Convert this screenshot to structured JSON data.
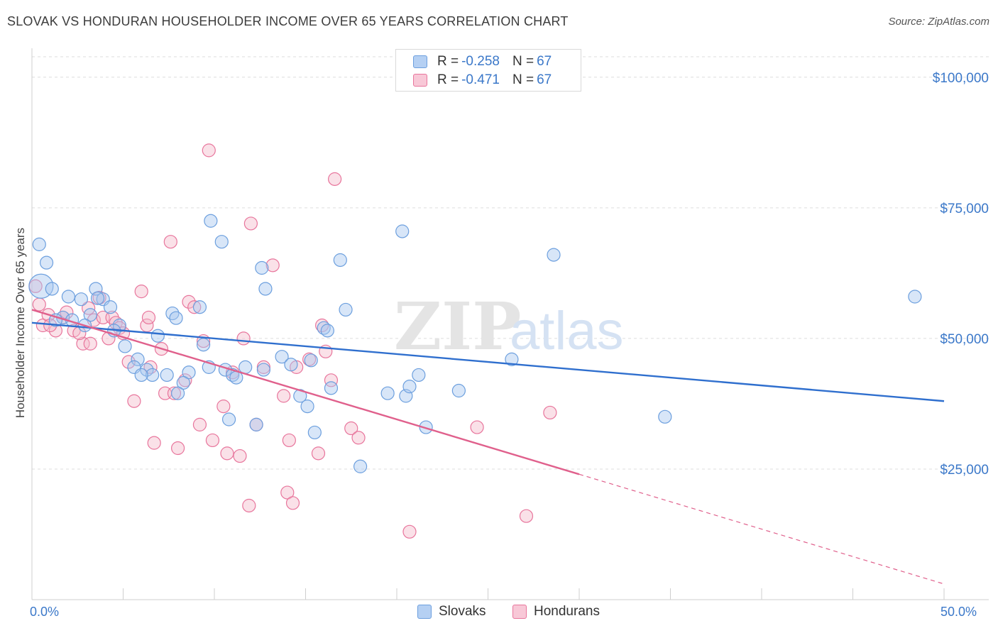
{
  "title": "SLOVAK VS HONDURAN HOUSEHOLDER INCOME OVER 65 YEARS CORRELATION CHART",
  "source": "Source: ZipAtlas.com",
  "watermark": {
    "zip": "ZIP",
    "atlas": "atlas"
  },
  "colors": {
    "blue": "#6c9fde",
    "blue_fill": "#a9c8f0",
    "pink": "#e8759c",
    "pink_fill": "#f5bccd",
    "blue_line": "#2f6fce",
    "pink_line": "#e0608c",
    "tick_label": "#3b78c9"
  },
  "legend": {
    "rows": [
      {
        "r_label": "R = ",
        "r_value": "-0.258",
        "n_label": "N = ",
        "n_value": "67"
      },
      {
        "r_label": "R = ",
        "r_value": "-0.471",
        "n_label": "N = ",
        "n_value": "67"
      }
    ]
  },
  "chart_data": {
    "type": "scatter",
    "title": "SLOVAK VS HONDURAN HOUSEHOLDER INCOME OVER 65 YEARS CORRELATION CHART",
    "xlabel": "",
    "ylabel": "Householder Income Over 65 years",
    "xlim": [
      0,
      50
    ],
    "ylim": [
      0,
      105000
    ],
    "x_tick_labels": [
      "0.0%",
      "50.0%"
    ],
    "y_ticks": [
      25000,
      50000,
      75000,
      100000
    ],
    "y_tick_labels": [
      "$25,000",
      "$50,000",
      "$75,000",
      "$100,000"
    ],
    "grid": "horizontal dashed",
    "legend_position": "top-center",
    "series": [
      {
        "name": "Slovaks",
        "points": [
          [
            0.4,
            68000
          ],
          [
            0.8,
            64500
          ],
          [
            0.5,
            60000
          ],
          [
            1.1,
            59500
          ],
          [
            2,
            58000
          ],
          [
            3.5,
            59500
          ],
          [
            2.7,
            57500
          ],
          [
            3.9,
            57500
          ],
          [
            4.3,
            56000
          ],
          [
            1.7,
            54000
          ],
          [
            2.2,
            53500
          ],
          [
            3.2,
            54500
          ],
          [
            2.9,
            52500
          ],
          [
            4.8,
            52500
          ],
          [
            4.5,
            51500
          ],
          [
            5.1,
            48500
          ],
          [
            6.9,
            50500
          ],
          [
            7.7,
            54800
          ],
          [
            7.9,
            53900
          ],
          [
            9.2,
            56000
          ],
          [
            9.4,
            48800
          ],
          [
            5.8,
            46000
          ],
          [
            5.6,
            44500
          ],
          [
            6.3,
            44000
          ],
          [
            6.6,
            43000
          ],
          [
            7.4,
            43000
          ],
          [
            8.6,
            43500
          ],
          [
            8.3,
            41500
          ],
          [
            8.0,
            39500
          ],
          [
            9.7,
            44500
          ],
          [
            10.6,
            44000
          ],
          [
            11.0,
            43000
          ],
          [
            11.7,
            44500
          ],
          [
            12.7,
            44000
          ],
          [
            13.7,
            46500
          ],
          [
            14.2,
            45000
          ],
          [
            15.3,
            45800
          ],
          [
            14.7,
            39000
          ],
          [
            15.1,
            37000
          ],
          [
            15.5,
            32000
          ],
          [
            10.8,
            34500
          ],
          [
            12.3,
            33500
          ],
          [
            9.8,
            72500
          ],
          [
            10.4,
            68500
          ],
          [
            12.6,
            63500
          ],
          [
            12.8,
            59500
          ],
          [
            16.0,
            52000
          ],
          [
            16.2,
            51500
          ],
          [
            16.4,
            40500
          ],
          [
            16.9,
            65000
          ],
          [
            17.2,
            55500
          ],
          [
            18.0,
            25500
          ],
          [
            19.5,
            39500
          ],
          [
            20.3,
            70500
          ],
          [
            20.5,
            39000
          ],
          [
            20.7,
            40800
          ],
          [
            21.2,
            43000
          ],
          [
            21.6,
            33000
          ],
          [
            23.4,
            40000
          ],
          [
            26.3,
            46000
          ],
          [
            28.6,
            66000
          ],
          [
            34.7,
            35000
          ],
          [
            48.4,
            58000
          ],
          [
            3.6,
            57700
          ],
          [
            1.3,
            53500
          ],
          [
            6.0,
            43000
          ],
          [
            11.2,
            42500
          ]
        ],
        "sizes_note": "one large point near x=0.2, y=60000"
      },
      {
        "name": "Hondurans",
        "points": [
          [
            0.2,
            60000
          ],
          [
            0.4,
            56500
          ],
          [
            0.6,
            52500
          ],
          [
            0.9,
            54500
          ],
          [
            1.3,
            51500
          ],
          [
            1.7,
            54000
          ],
          [
            1.9,
            55000
          ],
          [
            2.3,
            51500
          ],
          [
            2.8,
            49000
          ],
          [
            3.1,
            55800
          ],
          [
            3.4,
            53500
          ],
          [
            3.7,
            57800
          ],
          [
            3.9,
            54000
          ],
          [
            4.2,
            50000
          ],
          [
            4.4,
            54000
          ],
          [
            4.6,
            53000
          ],
          [
            4.8,
            52000
          ],
          [
            5.3,
            45500
          ],
          [
            5.6,
            38000
          ],
          [
            6.0,
            59000
          ],
          [
            6.3,
            52500
          ],
          [
            6.4,
            54000
          ],
          [
            6.5,
            44500
          ],
          [
            6.7,
            30000
          ],
          [
            7.1,
            48000
          ],
          [
            7.3,
            39500
          ],
          [
            7.6,
            68500
          ],
          [
            7.8,
            39500
          ],
          [
            8.0,
            29000
          ],
          [
            8.4,
            42000
          ],
          [
            8.6,
            57000
          ],
          [
            8.9,
            56000
          ],
          [
            9.2,
            33500
          ],
          [
            9.4,
            49500
          ],
          [
            9.7,
            86000
          ],
          [
            9.9,
            30500
          ],
          [
            10.5,
            37000
          ],
          [
            10.7,
            28000
          ],
          [
            11.0,
            43500
          ],
          [
            11.4,
            27500
          ],
          [
            11.6,
            50000
          ],
          [
            11.9,
            18000
          ],
          [
            12.0,
            72000
          ],
          [
            12.3,
            33500
          ],
          [
            12.7,
            44500
          ],
          [
            13.2,
            64000
          ],
          [
            13.8,
            39000
          ],
          [
            14.0,
            20500
          ],
          [
            14.1,
            30500
          ],
          [
            14.3,
            18500
          ],
          [
            14.5,
            44500
          ],
          [
            15.2,
            46000
          ],
          [
            15.7,
            28000
          ],
          [
            15.9,
            52500
          ],
          [
            16.1,
            47500
          ],
          [
            16.4,
            42000
          ],
          [
            16.6,
            80500
          ],
          [
            17.5,
            32800
          ],
          [
            17.9,
            31000
          ],
          [
            20.7,
            13000
          ],
          [
            24.4,
            33000
          ],
          [
            27.1,
            16000
          ],
          [
            28.4,
            35800
          ],
          [
            3.2,
            49000
          ],
          [
            5.0,
            51000
          ],
          [
            2.6,
            51000
          ],
          [
            1.0,
            52500
          ]
        ]
      }
    ],
    "trend_lines": [
      {
        "series": "Slovaks",
        "x0": 0,
        "y0": 53000,
        "x1": 50,
        "y1": 38000,
        "style": "solid"
      },
      {
        "series": "Hondurans",
        "x0": 0,
        "y0": 55500,
        "x1": 30,
        "y1": 24000,
        "style": "solid"
      },
      {
        "series": "Hondurans",
        "x0": 30,
        "y0": 24000,
        "x1": 50,
        "y1": 3000,
        "style": "dashed"
      }
    ]
  }
}
